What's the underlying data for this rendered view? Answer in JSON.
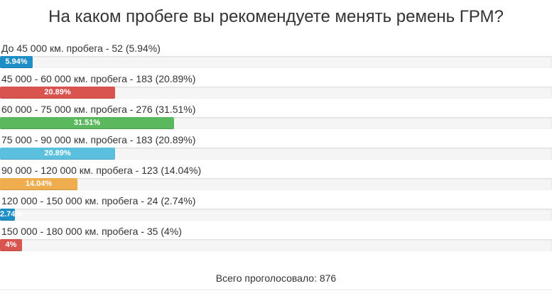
{
  "poll": {
    "title": "На каком пробеге вы рекомендуете менять ремень ГРМ?",
    "total_label": "Всего проголосовало: 876",
    "options": [
      {
        "label": "До 45 000 км. пробега - 52 (5.94%)",
        "bar_text": "5.94%",
        "percent": 5.94,
        "color": "#1e8fc6"
      },
      {
        "label": "45 000 - 60 000 км. пробега - 183 (20.89%)",
        "bar_text": "20.89%",
        "percent": 20.89,
        "color": "#d9534f"
      },
      {
        "label": "60 000 - 75 000 км. пробега - 276 (31.51%)",
        "bar_text": "31.51%",
        "percent": 31.51,
        "color": "#5cb85c"
      },
      {
        "label": "75 000 - 90 000 км. пробега - 183 (20.89%)",
        "bar_text": "20.89%",
        "percent": 20.89,
        "color": "#5bc0de"
      },
      {
        "label": "90 000 - 120 000 км. пробега - 123 (14.04%)",
        "bar_text": "14.04%",
        "percent": 14.04,
        "color": "#f0ad4e"
      },
      {
        "label": "120 000 - 150 000 км. пробега - 24 (2.74%)",
        "bar_text": "2.74%",
        "percent": 2.74,
        "color": "#1e8fc6"
      },
      {
        "label": "150 000 - 180 000 км. пробега - 35 (4%)",
        "bar_text": "4%",
        "percent": 4,
        "color": "#d9534f"
      }
    ]
  }
}
